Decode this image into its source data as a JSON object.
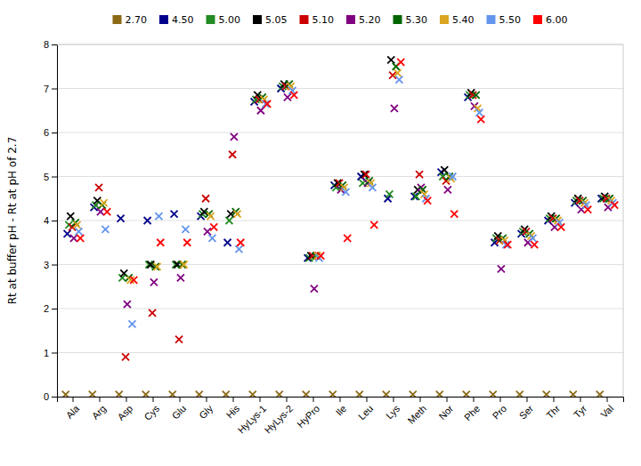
{
  "chart_data": {
    "type": "scatter",
    "ylabel": "Rt at buffer pH - Rt at pH of 2.7",
    "categories": [
      "Ala",
      "Arg",
      "Asp",
      "Cys",
      "Glu",
      "Gly",
      "His",
      "HyLys-1",
      "HyLys-2",
      "HyPro",
      "Ile",
      "Leu",
      "Lys",
      "Meth",
      "Nor",
      "Phe",
      "Pro",
      "Ser",
      "Thr",
      "Tyr",
      "Val"
    ],
    "ylim": [
      0,
      8
    ],
    "yticks": [
      0,
      1,
      2,
      3,
      4,
      5,
      6,
      7,
      8
    ],
    "grid": true,
    "legend": "top",
    "marker": "x",
    "series": [
      {
        "name": "2.70",
        "color": "#8B6914",
        "values": [
          0.05,
          0.05,
          0.05,
          0.05,
          0.05,
          0.05,
          0.05,
          0.05,
          0.05,
          0.05,
          0.05,
          0.05,
          0.05,
          0.05,
          0.05,
          0.05,
          0.05,
          0.05,
          0.05,
          0.05,
          0.05
        ]
      },
      {
        "name": "4.50",
        "color": "#00008B",
        "values": [
          3.7,
          4.3,
          4.05,
          4.0,
          4.15,
          4.1,
          3.5,
          6.7,
          7.0,
          3.15,
          4.8,
          5.0,
          4.5,
          4.55,
          5.1,
          6.8,
          3.5,
          3.7,
          4.0,
          4.4,
          4.5
        ]
      },
      {
        "name": "5.00",
        "color": "#228B22",
        "values": [
          3.9,
          4.35,
          2.7,
          3.0,
          3.0,
          4.15,
          4.0,
          6.75,
          7.05,
          3.15,
          4.75,
          4.85,
          4.6,
          4.55,
          5.0,
          6.85,
          3.6,
          3.75,
          4.05,
          4.45,
          4.5
        ]
      },
      {
        "name": "5.05",
        "color": "#000000",
        "values": [
          4.1,
          4.45,
          2.8,
          3.0,
          3.0,
          4.2,
          4.15,
          6.85,
          7.1,
          3.2,
          4.85,
          5.05,
          7.65,
          4.7,
          5.15,
          6.9,
          3.65,
          3.8,
          4.1,
          4.5,
          4.55
        ]
      },
      {
        "name": "5.10",
        "color": "#CC0000",
        "values": [
          3.85,
          4.75,
          0.9,
          1.9,
          1.3,
          4.5,
          5.5,
          6.75,
          7.05,
          3.2,
          4.85,
          5.05,
          7.3,
          5.05,
          4.9,
          6.85,
          3.55,
          3.75,
          4.05,
          4.45,
          4.5
        ]
      },
      {
        "name": "5.20",
        "color": "#800080",
        "values": [
          3.6,
          4.2,
          2.1,
          2.6,
          2.7,
          3.75,
          5.9,
          6.5,
          6.8,
          2.45,
          4.7,
          4.85,
          6.55,
          4.75,
          4.7,
          6.6,
          2.9,
          3.5,
          3.85,
          4.25,
          4.3
        ]
      },
      {
        "name": "5.30",
        "color": "#006400",
        "values": [
          3.95,
          4.35,
          2.7,
          2.95,
          3.0,
          4.15,
          4.2,
          6.8,
          7.1,
          3.2,
          4.8,
          4.9,
          7.5,
          4.7,
          5.0,
          6.85,
          3.6,
          3.7,
          4.05,
          4.45,
          4.5
        ]
      },
      {
        "name": "5.40",
        "color": "#DAA520",
        "values": [
          3.9,
          4.4,
          2.65,
          2.95,
          3.0,
          4.1,
          4.15,
          6.75,
          7.05,
          3.2,
          4.75,
          4.85,
          7.35,
          4.6,
          4.95,
          6.55,
          3.55,
          3.65,
          4.0,
          4.4,
          4.45
        ]
      },
      {
        "name": "5.50",
        "color": "#6495ED",
        "values": [
          3.75,
          3.8,
          1.65,
          4.1,
          3.8,
          3.6,
          3.35,
          6.65,
          6.95,
          3.15,
          4.65,
          4.75,
          7.2,
          4.5,
          5.0,
          6.45,
          3.45,
          3.6,
          3.95,
          4.35,
          4.4
        ]
      },
      {
        "name": "6.00",
        "color": "#FF0000",
        "values": [
          3.6,
          4.2,
          2.65,
          3.5,
          3.5,
          3.85,
          3.5,
          6.65,
          6.85,
          3.2,
          3.6,
          3.9,
          7.6,
          4.45,
          4.15,
          6.3,
          3.45,
          3.45,
          3.85,
          4.25,
          4.35
        ]
      }
    ]
  }
}
